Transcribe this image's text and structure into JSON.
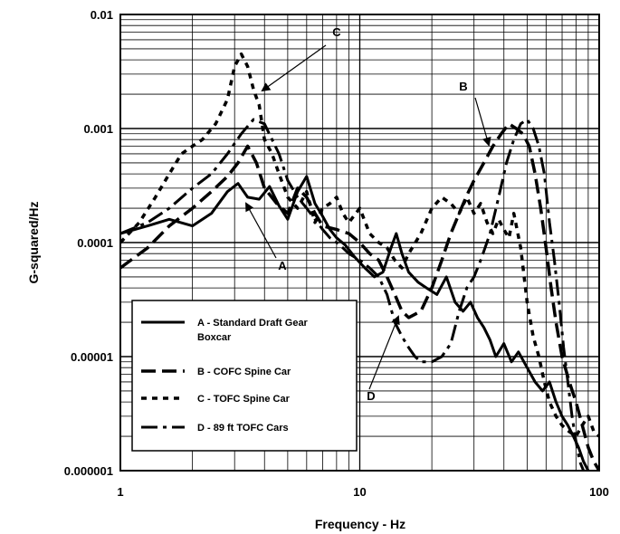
{
  "chart_data": {
    "type": "line",
    "xlabel": "Frequency - Hz",
    "ylabel": "G-squared/Hz",
    "x_scale": "log",
    "y_scale": "log",
    "xlim": [
      1,
      100
    ],
    "ylim": [
      1e-06,
      0.01
    ],
    "x_ticks": [
      "1",
      "10",
      "100"
    ],
    "y_ticks": [
      "0.000001",
      "0.00001",
      "0.0001",
      "0.001",
      "0.01"
    ],
    "grid": true,
    "legend_position": "bottom-left",
    "series": [
      {
        "name": "A - Standard Draft Gear Boxcar",
        "label": "A",
        "line_style": "solid",
        "x": [
          1.0,
          1.3,
          1.6,
          2.0,
          2.4,
          2.8,
          3.1,
          3.4,
          3.8,
          4.2,
          4.6,
          5.0,
          5.5,
          6.0,
          6.5,
          7.0,
          7.5,
          8.0,
          8.7,
          9.5,
          10.5,
          11.5,
          12.5,
          13.5,
          14.2,
          15.0,
          16.0,
          17.5,
          19.0,
          21.0,
          23.0,
          25.0,
          27.0,
          29.0,
          31.0,
          33.0,
          35.0,
          37.0,
          40.0,
          43.0,
          46.0,
          50.0,
          54.0,
          58.0,
          62.0,
          66.0,
          70.0,
          74.0,
          78.0,
          82.0,
          86.0,
          90.0
        ],
        "y": [
          0.00012,
          0.00014,
          0.00016,
          0.00014,
          0.00018,
          0.00028,
          0.00033,
          0.00025,
          0.00024,
          0.00031,
          0.00021,
          0.00016,
          0.00028,
          0.00038,
          0.00022,
          0.00017,
          0.00013,
          0.00011,
          9.5e-05,
          7.5e-05,
          6e-05,
          5e-05,
          5.5e-05,
          9e-05,
          0.00012,
          8e-05,
          5.5e-05,
          4.5e-05,
          4e-05,
          3.5e-05,
          5e-05,
          3e-05,
          2.5e-05,
          3e-05,
          2.2e-05,
          1.8e-05,
          1.4e-05,
          1e-05,
          1.3e-05,
          9e-06,
          1.1e-05,
          8e-06,
          6e-06,
          5e-06,
          6e-06,
          4e-06,
          3e-06,
          2.5e-06,
          2e-06,
          1.6e-06,
          1.2e-06,
          1e-06
        ]
      },
      {
        "name": "B - COFC Spine Car",
        "label": "B",
        "line_style": "long-dash",
        "x": [
          1.0,
          1.3,
          1.6,
          2.0,
          2.4,
          2.8,
          3.1,
          3.4,
          3.7,
          4.0,
          4.5,
          5.0,
          5.5,
          6.0,
          6.5,
          7.0,
          8.0,
          9.0,
          10.0,
          11.0,
          12.0,
          13.0,
          14.0,
          15.0,
          16.0,
          18.0,
          20.0,
          22.0,
          24.0,
          26.0,
          28.0,
          30.0,
          33.0,
          36.0,
          39.0,
          42.0,
          45.0,
          48.0,
          51.0,
          54.0,
          57.0,
          60.0,
          63.0,
          66.0,
          70.0,
          75.0,
          80.0,
          85.0,
          90.0,
          95.0,
          100.0
        ],
        "y": [
          6e-05,
          9e-05,
          0.00014,
          0.0002,
          0.00028,
          0.00038,
          0.0005,
          0.0007,
          0.0005,
          0.0003,
          0.00022,
          0.00018,
          0.0003,
          0.00025,
          0.00018,
          0.00014,
          0.00013,
          0.00012,
          0.0001,
          8e-05,
          7e-05,
          5e-05,
          3.5e-05,
          2.5e-05,
          2.2e-05,
          2.5e-05,
          4e-05,
          7e-05,
          0.00012,
          0.00018,
          0.00026,
          0.00035,
          0.0005,
          0.0007,
          0.0009,
          0.0011,
          0.001,
          0.0009,
          0.0007,
          0.0004,
          0.0002,
          9e-05,
          4e-05,
          2e-05,
          1e-05,
          6e-06,
          4e-06,
          2.5e-06,
          1.6e-06,
          1.2e-06,
          1e-06
        ]
      },
      {
        "name": "C - TOFC Spine Car",
        "label": "C",
        "line_style": "short-dash",
        "x": [
          1.0,
          1.2,
          1.4,
          1.6,
          1.8,
          2.0,
          2.2,
          2.5,
          2.8,
          3.0,
          3.2,
          3.4,
          3.6,
          3.8,
          4.0,
          4.3,
          4.6,
          5.0,
          5.5,
          6.0,
          6.5,
          7.0,
          7.5,
          8.0,
          8.5,
          9.0,
          10.0,
          11.0,
          12.0,
          13.0,
          14.0,
          15.0,
          16.0,
          18.0,
          20.0,
          22.0,
          24.0,
          26.0,
          28.0,
          30.0,
          32.0,
          34.0,
          36.0,
          38.0,
          40.0,
          42.0,
          44.0,
          47.0,
          50.0,
          53.0,
          56.0,
          59.0,
          62.0,
          66.0,
          70.0,
          75.0,
          80.0,
          85.0,
          90.0,
          95.0,
          100.0
        ],
        "y": [
          0.0001,
          0.00015,
          0.00025,
          0.0004,
          0.0006,
          0.0007,
          0.0008,
          0.0011,
          0.0018,
          0.0035,
          0.0045,
          0.0035,
          0.0022,
          0.0016,
          0.0008,
          0.0006,
          0.0004,
          0.00025,
          0.0002,
          0.00028,
          0.00015,
          0.0002,
          0.00022,
          0.00025,
          0.00018,
          0.00015,
          0.0002,
          0.00012,
          0.0001,
          9e-05,
          7e-05,
          6e-05,
          8e-05,
          0.00012,
          0.0002,
          0.00025,
          0.00022,
          0.00018,
          0.00025,
          0.00018,
          0.00022,
          0.00015,
          0.00012,
          0.00016,
          0.00013,
          0.00011,
          0.00018,
          9e-05,
          3e-05,
          1.5e-05,
          1e-05,
          6e-06,
          4e-06,
          3e-06,
          2.5e-06,
          2.2e-06,
          2e-06,
          2.5e-06,
          3e-06,
          2.2e-06,
          2e-06
        ]
      },
      {
        "name": "D - 89 ft TOFC Cars",
        "label": "D",
        "line_style": "dash-dot",
        "x": [
          1.0,
          1.3,
          1.6,
          2.0,
          2.4,
          2.8,
          3.2,
          3.6,
          4.0,
          4.3,
          4.6,
          5.0,
          5.5,
          6.0,
          6.5,
          7.0,
          7.5,
          8.0,
          8.5,
          9.0,
          10.0,
          11.0,
          12.0,
          13.0,
          14.0,
          15.0,
          16.0,
          17.0,
          18.0,
          20.0,
          22.0,
          24.0,
          26.0,
          28.0,
          30.0,
          32.0,
          35.0,
          38.0,
          41.0,
          44.0,
          47.0,
          50.0,
          53.0,
          56.0,
          59.0,
          62.0,
          65.0,
          68.0,
          71.0,
          74.0,
          77.0,
          80.0,
          83.0,
          86.0
        ],
        "y": [
          0.00012,
          0.00015,
          0.0002,
          0.0003,
          0.0004,
          0.0006,
          0.0009,
          0.0012,
          0.0011,
          0.0008,
          0.0006,
          0.00035,
          0.00025,
          0.0002,
          0.00016,
          0.00013,
          0.00011,
          0.0001,
          9e-05,
          8e-05,
          7e-05,
          6e-05,
          5e-05,
          3.5e-05,
          2e-05,
          1.5e-05,
          1.2e-05,
          1e-05,
          9e-06,
          9e-06,
          1e-05,
          1.3e-05,
          2.5e-05,
          4e-05,
          5e-05,
          7e-05,
          0.00012,
          0.00025,
          0.0005,
          0.0008,
          0.0011,
          0.0012,
          0.001,
          0.0007,
          0.0004,
          0.00015,
          7e-05,
          3e-05,
          1.2e-05,
          6e-06,
          3e-06,
          1.8e-06,
          1.2e-06,
          1e-06
        ]
      }
    ],
    "annotations": [
      {
        "text": "C",
        "series": "C"
      },
      {
        "text": "B",
        "series": "B"
      },
      {
        "text": "A",
        "series": "A"
      },
      {
        "text": "D",
        "series": "D"
      }
    ]
  }
}
